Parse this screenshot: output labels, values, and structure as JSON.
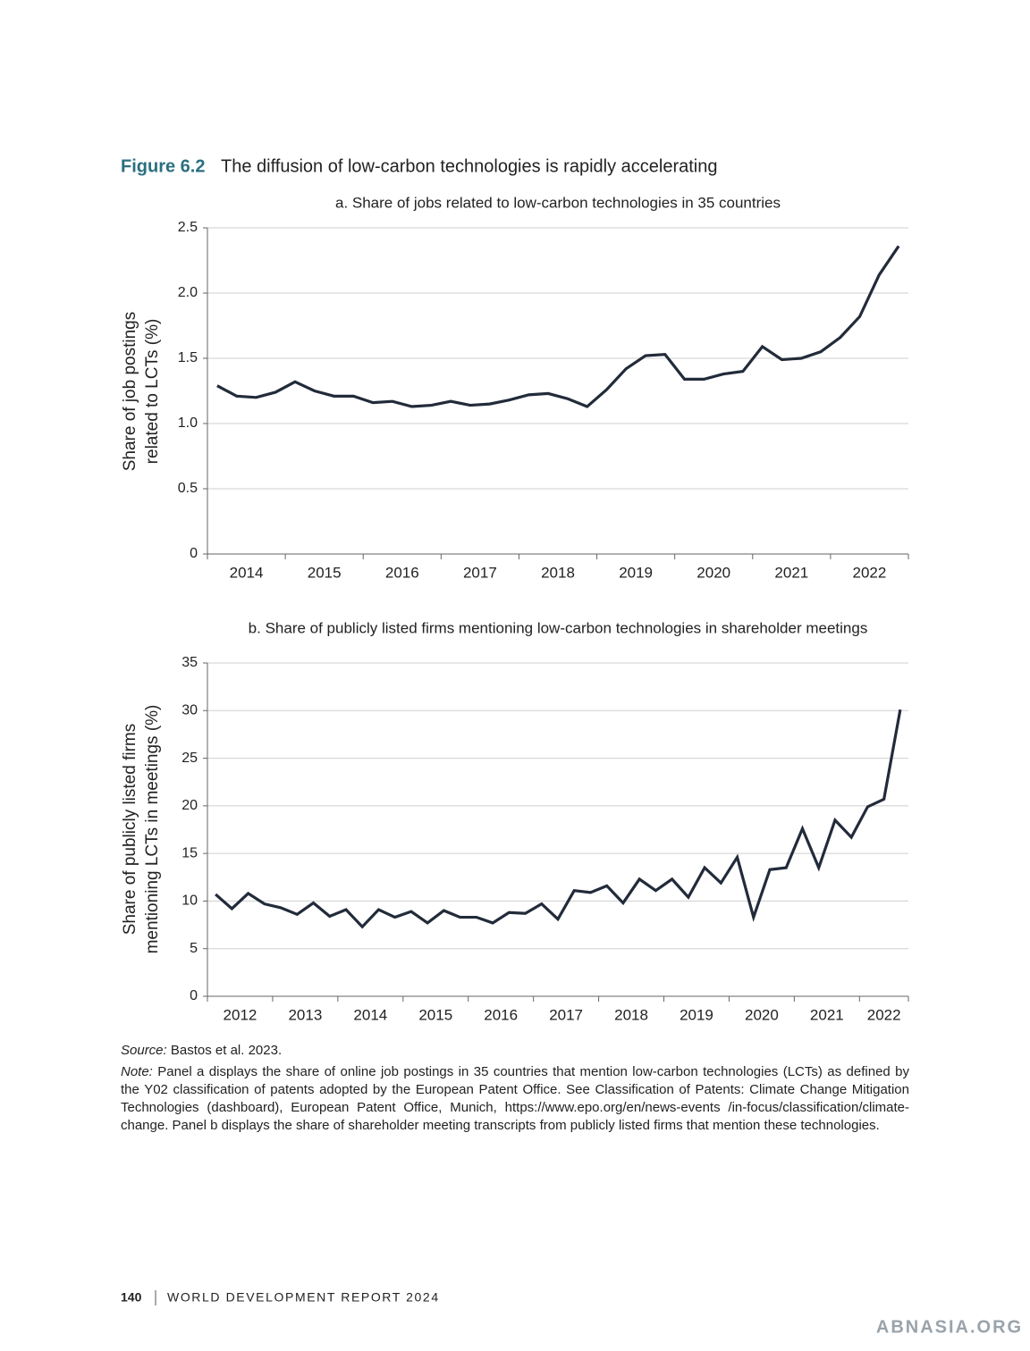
{
  "figure": {
    "label": "Figure 6.2",
    "title": "The diffusion of low-carbon technologies is rapidly accelerating"
  },
  "chart_data": [
    {
      "type": "line",
      "title": "a. Share of jobs related to low-carbon technologies in 35 countries",
      "ylabel": [
        "Share of job postings",
        "related to LCTs (%)"
      ],
      "categories": [
        "2014",
        null,
        null,
        null,
        "2015",
        null,
        null,
        null,
        "2016",
        null,
        null,
        null,
        "2017",
        null,
        null,
        null,
        "2018",
        null,
        null,
        null,
        "2019",
        null,
        null,
        null,
        "2020",
        null,
        null,
        null,
        "2021",
        null,
        null,
        null,
        "2022",
        null,
        null,
        null
      ],
      "values": [
        1.29,
        1.21,
        1.2,
        1.24,
        1.32,
        1.25,
        1.21,
        1.21,
        1.16,
        1.17,
        1.13,
        1.14,
        1.17,
        1.14,
        1.15,
        1.18,
        1.22,
        1.23,
        1.19,
        1.13,
        1.26,
        1.42,
        1.52,
        1.53,
        1.34,
        1.34,
        1.38,
        1.4,
        1.59,
        1.49,
        1.5,
        1.55,
        1.66,
        1.82,
        2.14,
        2.36
      ],
      "color": "#222b3a",
      "ylim": [
        0,
        2.5
      ],
      "yticks": [
        0,
        0.5,
        {
          "value": 1,
          "label": "1.0"
        },
        1.5,
        {
          "value": 2,
          "label": "2.0"
        },
        2.5
      ],
      "grid": true
    },
    {
      "type": "line",
      "title": "b. Share of publicly listed firms mentioning low-carbon technologies in shareholder meetings",
      "ylabel": [
        "Share of publicly listed firms",
        "mentioning LCTs in meetings (%)"
      ],
      "categories": [
        "2012",
        null,
        null,
        null,
        "2013",
        null,
        null,
        null,
        "2014",
        null,
        null,
        null,
        "2015",
        null,
        null,
        null,
        "2016",
        null,
        null,
        null,
        "2017",
        null,
        null,
        null,
        "2018",
        null,
        null,
        null,
        "2019",
        null,
        null,
        null,
        "2020",
        null,
        null,
        null,
        "2021",
        null,
        null,
        null,
        "2022",
        null,
        null
      ],
      "values": [
        10.7,
        9.2,
        10.8,
        9.7,
        9.3,
        8.6,
        9.8,
        8.4,
        9.1,
        7.3,
        9.1,
        8.3,
        8.9,
        7.7,
        9.0,
        8.3,
        8.3,
        7.7,
        8.8,
        8.7,
        9.7,
        8.1,
        11.1,
        10.9,
        11.6,
        9.8,
        12.3,
        11.1,
        12.3,
        10.4,
        13.5,
        11.9,
        14.6,
        8.3,
        13.3,
        13.5,
        17.6,
        13.5,
        18.5,
        16.7,
        19.9,
        20.7,
        30.1
      ],
      "color": "#222b3a",
      "ylim": [
        0,
        35
      ],
      "yticks": [
        0,
        5,
        10,
        15,
        20,
        25,
        30,
        35
      ],
      "grid": true
    }
  ],
  "source": {
    "label": "Source:",
    "text": "Bastos et al. 2023."
  },
  "note": {
    "label": "Note:",
    "text": "Panel a displays the share of online job postings in 35 countries that mention low-carbon technologies (LCTs) as defined by the Y02 classification of patents adopted by the European Patent Office. See Classification of Patents: Climate Change Mitigation Technologies (dashboard), European Patent Office, Munich, https://www.epo.org/en/news-events /in-focus/classification/climate-change. Panel b displays the share of shareholder meeting transcripts from publicly listed firms that mention these technologies."
  },
  "footer": {
    "page": "140",
    "report": "WORLD DEVELOPMENT REPORT 2024"
  },
  "watermark": "ABNASIA.ORG"
}
